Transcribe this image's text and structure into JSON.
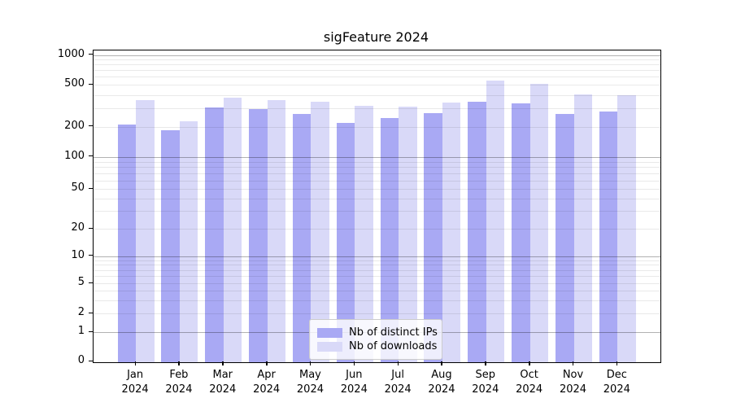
{
  "chart_data": {
    "type": "bar",
    "title": "sigFeature 2024",
    "categories": [
      "Jan",
      "Feb",
      "Mar",
      "Apr",
      "May",
      "Jun",
      "Jul",
      "Aug",
      "Sep",
      "Oct",
      "Nov",
      "Dec"
    ],
    "x_tick_second_line": "2024",
    "series": [
      {
        "name": "Nb of distinct IPs",
        "color": "#a9a9f4",
        "values": [
          210,
          183,
          304,
          292,
          262,
          217,
          242,
          270,
          342,
          332,
          264,
          279
        ]
      },
      {
        "name": "Nb of downloads",
        "color": "#d9d9f8",
        "values": [
          355,
          226,
          376,
          359,
          344,
          315,
          311,
          340,
          553,
          513,
          404,
          399
        ]
      }
    ],
    "yscale": "symlog",
    "ytick_labels": [
      "1000",
      "500",
      "200",
      "100",
      "50",
      "20",
      "10",
      "5",
      "2",
      "1",
      "0"
    ],
    "ytick_values": [
      1000,
      500,
      200,
      100,
      50,
      20,
      10,
      5,
      2,
      1,
      0
    ],
    "ylim": [
      0,
      1100
    ],
    "grid": "horizontal, major and minor, drawn over bars",
    "legend_position": "lower center"
  }
}
